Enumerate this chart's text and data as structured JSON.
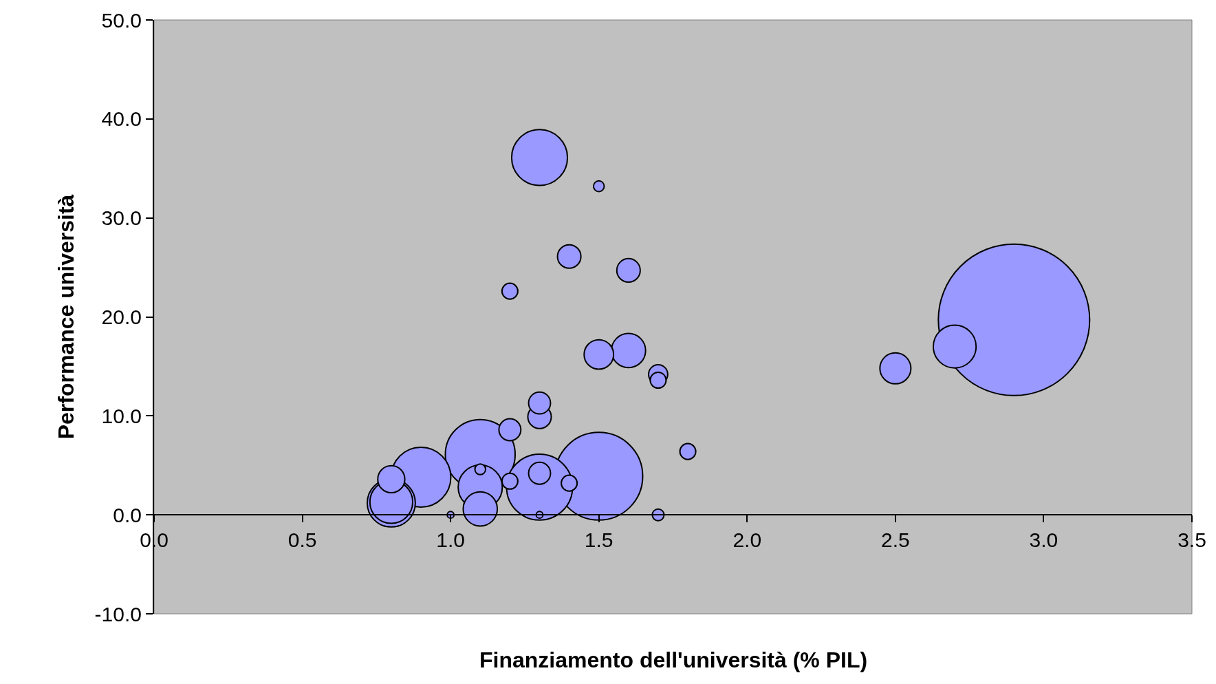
{
  "chart_data": {
    "type": "bubble",
    "xlabel": "Finanziamento dell'università (% PIL)",
    "ylabel": "Performance università",
    "xlim": [
      0,
      3.5
    ],
    "ylim": [
      -10,
      50
    ],
    "xticks": [
      {
        "value": 0,
        "label": "0.0"
      },
      {
        "value": 0.5,
        "label": "0.5"
      },
      {
        "value": 1,
        "label": "1.0"
      },
      {
        "value": 1.5,
        "label": "1.5"
      },
      {
        "value": 2,
        "label": "2.0"
      },
      {
        "value": 2.5,
        "label": "2.5"
      },
      {
        "value": 3,
        "label": "3.0"
      },
      {
        "value": 3.5,
        "label": "3.5"
      }
    ],
    "yticks": [
      {
        "value": -10,
        "label": "-10.0"
      },
      {
        "value": 0,
        "label": "0.0"
      },
      {
        "value": 10,
        "label": "10.0"
      },
      {
        "value": 20,
        "label": "20.0"
      },
      {
        "value": 30,
        "label": "30.0"
      },
      {
        "value": 40,
        "label": "40.0"
      },
      {
        "value": 50,
        "label": "50.0"
      }
    ],
    "grid": false,
    "series": [
      {
        "color": "#9999ff",
        "x": [
          2.9,
          1.5,
          1.1,
          1.3,
          0.9,
          1.3,
          0.8,
          1.1,
          0.8,
          2.7,
          1.6,
          1.1,
          2.5,
          1.5,
          0.8,
          1.4,
          1.6,
          1.3,
          1.3,
          1.2,
          1.3,
          1.7,
          1.2,
          1.7,
          1.8,
          1.2,
          1.4,
          1.7,
          1.5,
          1.1,
          1.0,
          1.3
        ],
        "values": [
          19.7,
          3.9,
          6.1,
          2.8,
          3.8,
          36.1,
          1.2,
          2.8,
          1.3,
          17.0,
          16.6,
          0.6,
          14.8,
          16.2,
          3.6,
          26.1,
          24.7,
          9.9,
          11.3,
          8.6,
          4.2,
          14.2,
          22.6,
          13.6,
          6.4,
          3.4,
          3.2,
          0.0,
          33.2,
          4.6,
          0.0,
          0.0
        ],
        "sizes": [
          1,
          0.336,
          0.213,
          0.19,
          0.156,
          0.136,
          0.101,
          0.085,
          0.08,
          0.08,
          0.051,
          0.051,
          0.042,
          0.038,
          0.032,
          0.024,
          0.024,
          0.024,
          0.021,
          0.021,
          0.021,
          0.016,
          0.011,
          0.011,
          0.011,
          0.011,
          0.011,
          0.006,
          0.005,
          0.005,
          0.002,
          0.002
        ]
      }
    ]
  }
}
